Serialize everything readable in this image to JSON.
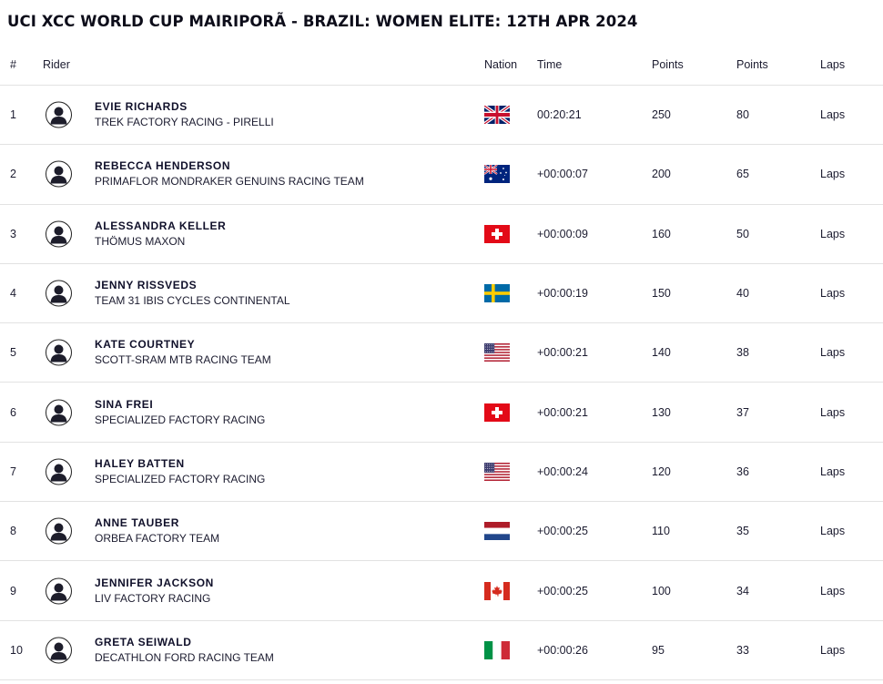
{
  "title": "UCI XCC WORLD CUP MAIRIPORÃ - BRAZIL: WOMEN ELITE: 12TH APR 2024",
  "headers": {
    "rank": "#",
    "rider": "Rider",
    "nation": "Nation",
    "time": "Time",
    "points1": "Points",
    "points2": "Points",
    "laps": "Laps"
  },
  "rows": [
    {
      "rank": "1",
      "name": "EVIE RICHARDS",
      "team": "TREK FACTORY RACING - PIRELLI",
      "flag": "gb-flag-icon",
      "time": "00:20:21",
      "points1": "250",
      "points2": "80",
      "laps": "Laps"
    },
    {
      "rank": "2",
      "name": "REBECCA HENDERSON",
      "team": "PRIMAFLOR MONDRAKER GENUINS RACING TEAM",
      "flag": "au-flag-icon",
      "time": "+00:00:07",
      "points1": "200",
      "points2": "65",
      "laps": "Laps"
    },
    {
      "rank": "3",
      "name": "ALESSANDRA KELLER",
      "team": "THÖMUS MAXON",
      "flag": "ch-flag-icon",
      "time": "+00:00:09",
      "points1": "160",
      "points2": "50",
      "laps": "Laps"
    },
    {
      "rank": "4",
      "name": "JENNY RISSVEDS",
      "team": "TEAM 31 IBIS CYCLES CONTINENTAL",
      "flag": "se-flag-icon",
      "time": "+00:00:19",
      "points1": "150",
      "points2": "40",
      "laps": "Laps"
    },
    {
      "rank": "5",
      "name": "KATE COURTNEY",
      "team": "SCOTT-SRAM MTB RACING TEAM",
      "flag": "us-flag-icon",
      "time": "+00:00:21",
      "points1": "140",
      "points2": "38",
      "laps": "Laps"
    },
    {
      "rank": "6",
      "name": "SINA FREI",
      "team": "SPECIALIZED FACTORY RACING",
      "flag": "ch-flag-icon",
      "time": "+00:00:21",
      "points1": "130",
      "points2": "37",
      "laps": "Laps"
    },
    {
      "rank": "7",
      "name": "HALEY BATTEN",
      "team": "SPECIALIZED FACTORY RACING",
      "flag": "us-flag-icon",
      "time": "+00:00:24",
      "points1": "120",
      "points2": "36",
      "laps": "Laps"
    },
    {
      "rank": "8",
      "name": "ANNE TAUBER",
      "team": "ORBEA FACTORY TEAM",
      "flag": "nl-flag-icon",
      "time": "+00:00:25",
      "points1": "110",
      "points2": "35",
      "laps": "Laps"
    },
    {
      "rank": "9",
      "name": "JENNIFER JACKSON",
      "team": "LIV FACTORY RACING",
      "flag": "ca-flag-icon",
      "time": "+00:00:25",
      "points1": "100",
      "points2": "34",
      "laps": "Laps"
    },
    {
      "rank": "10",
      "name": "GRETA SEIWALD",
      "team": "DECATHLON FORD RACING TEAM",
      "flag": "it-flag-icon",
      "time": "+00:00:26",
      "points1": "95",
      "points2": "33",
      "laps": "Laps"
    }
  ],
  "colors": {
    "text": "#1b1b2f",
    "divider": "#e2e2e2",
    "avatar": "#1d1d2b"
  }
}
